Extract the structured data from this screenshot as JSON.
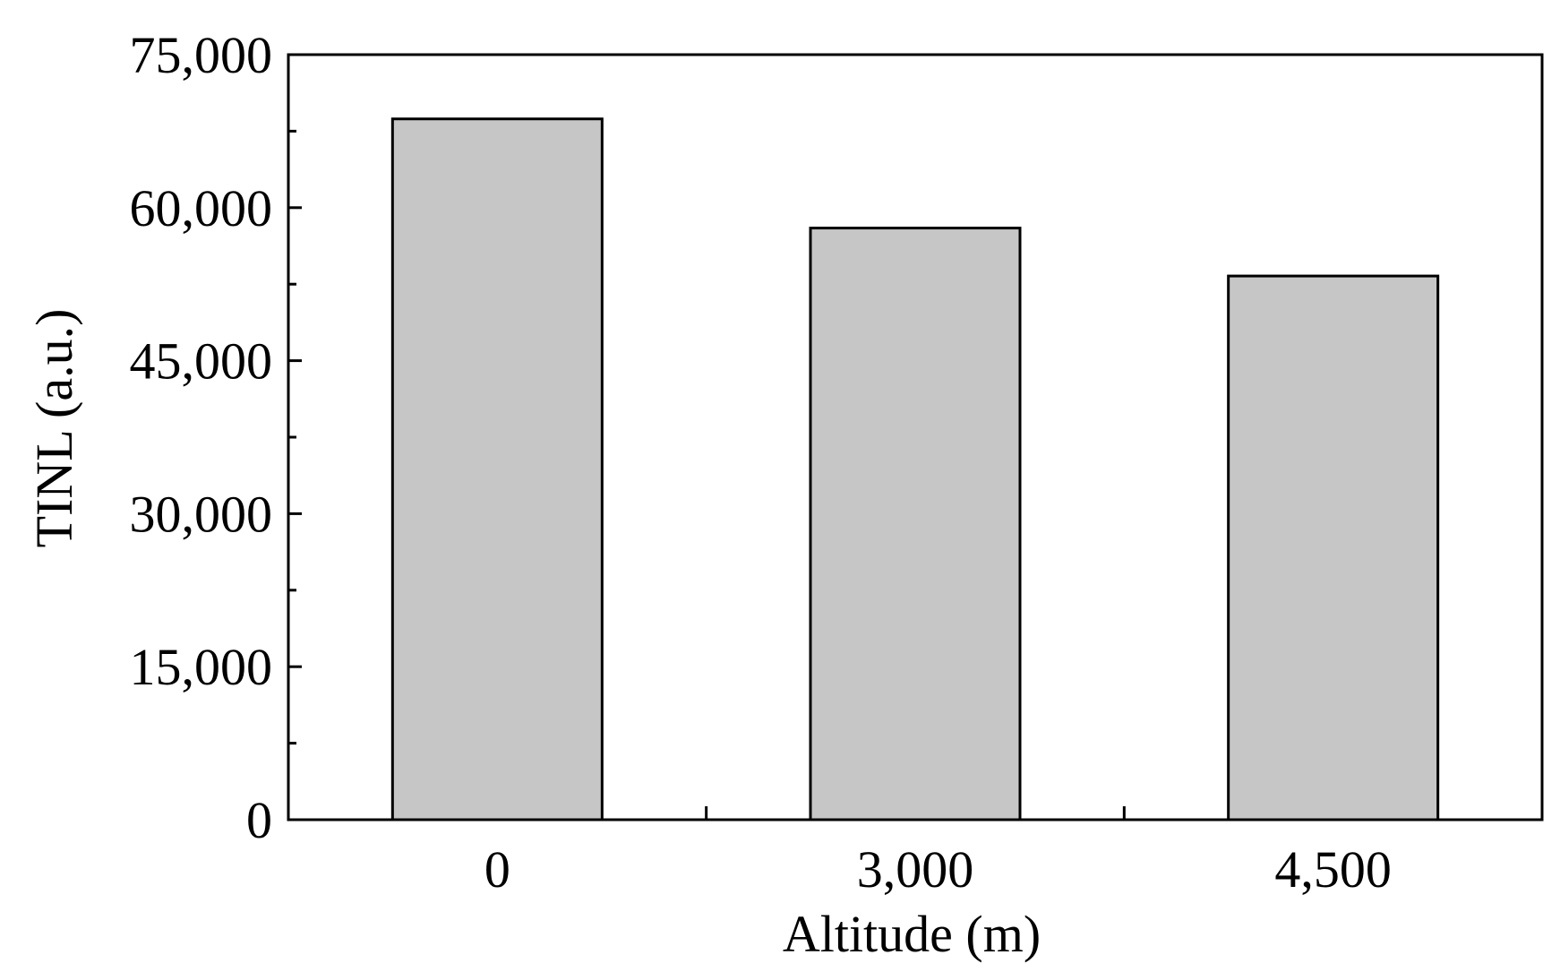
{
  "chart_data": {
    "type": "bar",
    "categories": [
      "0",
      "3,000",
      "4,500"
    ],
    "values": [
      68700,
      58000,
      53300
    ],
    "xlabel": "Altitude (m)",
    "ylabel": "TINL (a.u.)",
    "ylim": [
      0,
      75000
    ],
    "yticks": [
      0,
      15000,
      30000,
      45000,
      60000,
      75000
    ],
    "ytick_labels": [
      "0",
      "15,000",
      "30,000",
      "45,000",
      "60,000",
      "75,000"
    ],
    "grid": false,
    "bar_color": "#c6c6c6",
    "bar_edge_color": "#000000"
  }
}
